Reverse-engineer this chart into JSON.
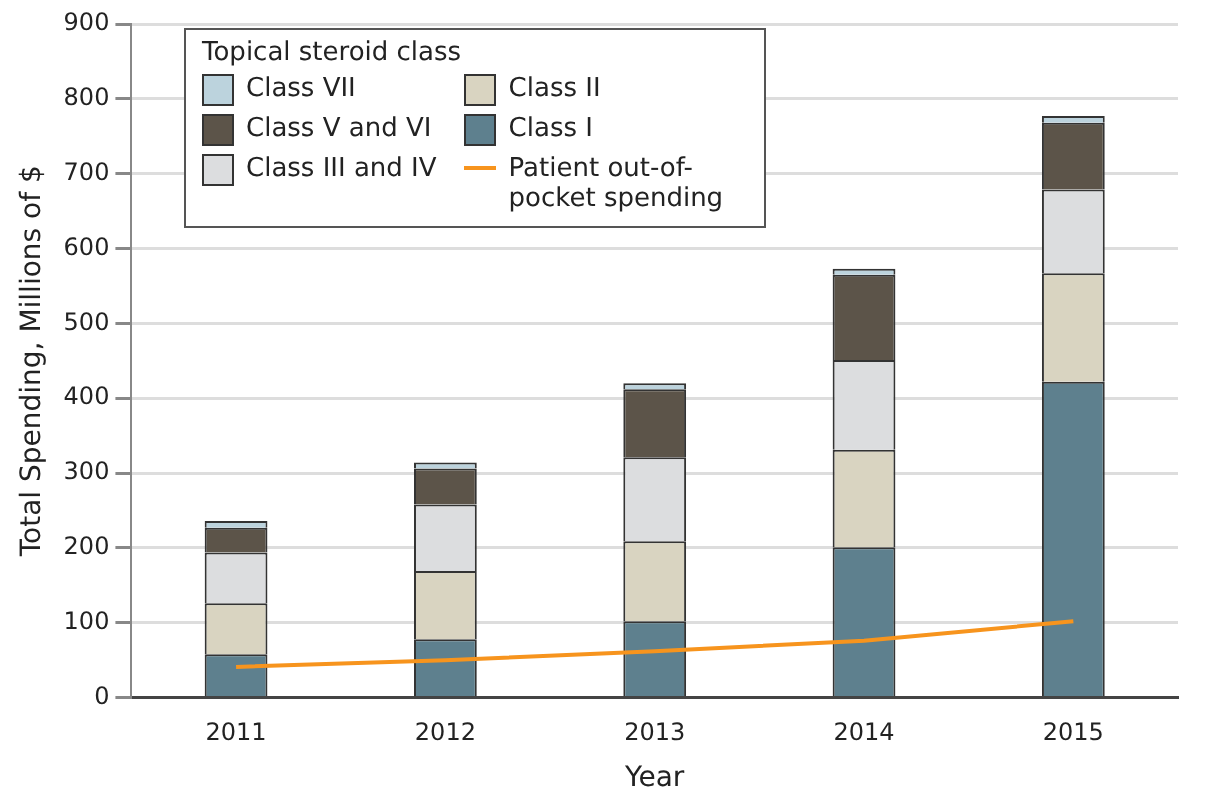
{
  "chart_data": {
    "type": "bar",
    "stacked": true,
    "xlabel": "Year",
    "ylabel": "Total Spending, Millions of $",
    "legend_title": "Topical steroid class",
    "legend": "top left",
    "grid": "y",
    "categories": [
      "2011",
      "2012",
      "2013",
      "2014",
      "2015"
    ],
    "ylim": [
      0,
      900
    ],
    "yticks": [
      0,
      100,
      200,
      300,
      400,
      500,
      600,
      700,
      800,
      900
    ],
    "series": [
      {
        "name": "Class I",
        "color": "#5e808e",
        "values": [
          58,
          78,
          102,
          201,
          422
        ]
      },
      {
        "name": "Class II",
        "color": "#d9d4c1",
        "values": [
          68,
          91,
          107,
          130,
          145
        ]
      },
      {
        "name": "Class III and IV",
        "color": "#dcdddf",
        "values": [
          68,
          89,
          112,
          120,
          112
        ]
      },
      {
        "name": "Class V and VI",
        "color": "#5c5449",
        "values": [
          33,
          48,
          91,
          114,
          89
        ]
      },
      {
        "name": "Class VII",
        "color": "#bcd3dd",
        "values": [
          9,
          8,
          8,
          8,
          9
        ]
      },
      {
        "name": "Patient out-of-pocket spending",
        "type": "line",
        "color": "#f7941d",
        "values": [
          41,
          50,
          62,
          76,
          102
        ]
      }
    ]
  }
}
